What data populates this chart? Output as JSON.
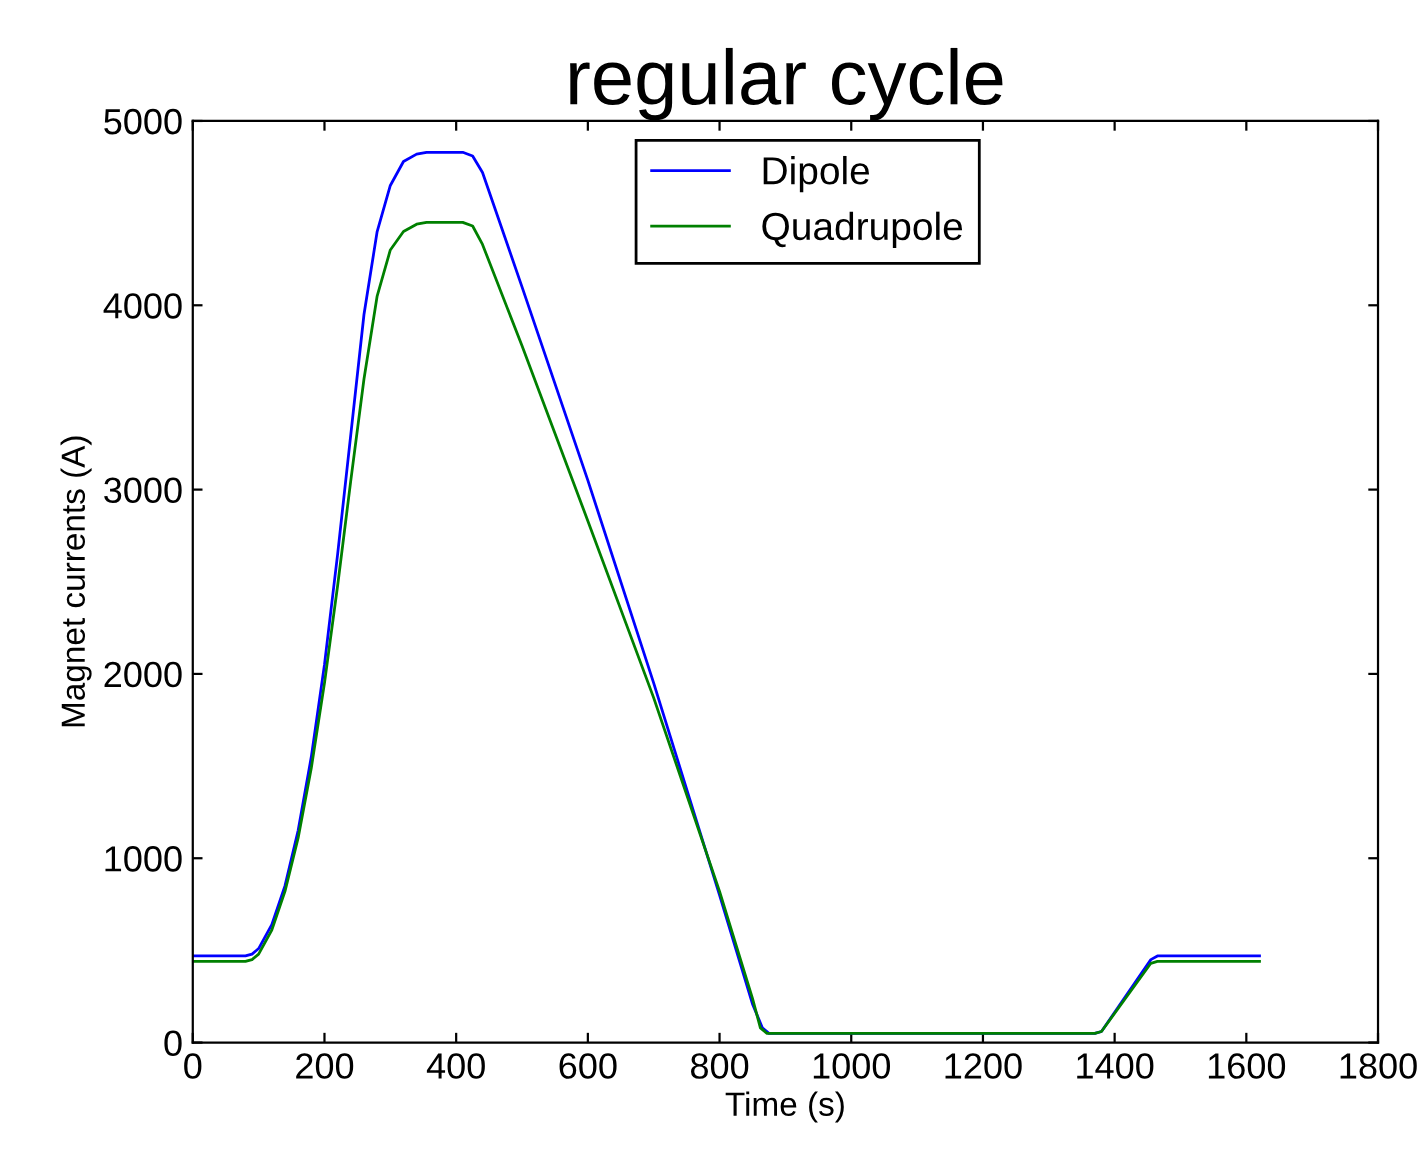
{
  "chart_data": {
    "type": "line",
    "title": "regular cycle",
    "xlabel": "Time (s)",
    "ylabel": "Magnet currents (A)",
    "xlim": [
      0,
      1800
    ],
    "ylim": [
      0,
      5000
    ],
    "xticks": [
      0,
      200,
      400,
      600,
      800,
      1000,
      1200,
      1400,
      1600,
      1800
    ],
    "yticks": [
      0,
      1000,
      2000,
      3000,
      4000,
      5000
    ],
    "grid": false,
    "legend": "top right",
    "line_style": "solid",
    "marker": "none",
    "series": [
      {
        "name": "Dipole",
        "color": "#0000ff",
        "x": [
          0,
          80,
          90,
          100,
          120,
          140,
          160,
          180,
          200,
          220,
          240,
          260,
          280,
          300,
          320,
          340,
          355,
          410,
          425,
          440,
          500,
          600,
          700,
          800,
          850,
          865,
          875,
          1370,
          1380,
          1455,
          1465,
          1620
        ],
        "values": [
          470,
          470,
          480,
          510,
          640,
          850,
          1150,
          1550,
          2050,
          2650,
          3300,
          3950,
          4400,
          4650,
          4780,
          4820,
          4830,
          4830,
          4810,
          4720,
          4100,
          3050,
          1950,
          800,
          210,
          80,
          50,
          50,
          60,
          450,
          470,
          470
        ]
      },
      {
        "name": "Quadrupole",
        "color": "#008000",
        "x": [
          0,
          80,
          90,
          100,
          120,
          140,
          160,
          180,
          200,
          220,
          240,
          260,
          280,
          300,
          320,
          340,
          355,
          410,
          425,
          440,
          500,
          600,
          700,
          800,
          850,
          862,
          872,
          1370,
          1380,
          1455,
          1465,
          1620
        ],
        "values": [
          440,
          440,
          450,
          480,
          610,
          820,
          1110,
          1490,
          1950,
          2480,
          3050,
          3600,
          4050,
          4300,
          4400,
          4440,
          4450,
          4450,
          4430,
          4330,
          3780,
          2830,
          1870,
          820,
          240,
          80,
          50,
          50,
          60,
          430,
          440,
          440
        ]
      }
    ]
  }
}
